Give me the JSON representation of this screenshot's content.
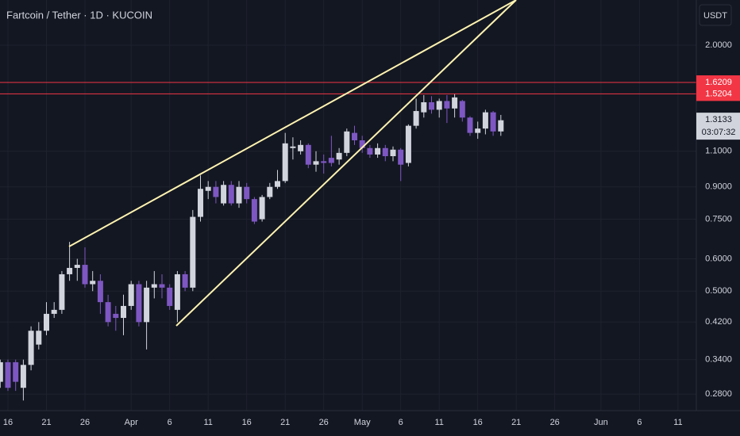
{
  "chart_data": {
    "type": "candlestick",
    "title": "Fartcoin / Tether · 1D · KUCOIN",
    "currency": "USDT",
    "categories": [
      null,
      "16",
      null,
      null,
      null,
      null,
      "21",
      null,
      null,
      null,
      null,
      "26",
      null,
      null,
      null,
      null,
      null,
      "Apr",
      null,
      null,
      null,
      null,
      "6",
      null,
      null,
      null,
      null,
      "11",
      null,
      null,
      null,
      null,
      "16",
      null,
      null,
      null,
      null,
      "21",
      null,
      null,
      null,
      null,
      "26",
      null,
      null,
      null,
      null,
      "May",
      null,
      null,
      null,
      null,
      "6",
      null,
      null,
      null,
      null,
      "11",
      null,
      null,
      null,
      null,
      "16",
      null,
      null,
      null,
      null,
      "21",
      null,
      null,
      null,
      null,
      "26",
      null,
      null,
      null,
      null,
      null,
      "Jun",
      null,
      null,
      null,
      null,
      "6",
      null,
      null,
      null,
      null,
      "11"
    ],
    "open": [
      0.3,
      0.335,
      0.335,
      0.29,
      0.33,
      0.37,
      0.4,
      0.44,
      0.45,
      0.55,
      0.57,
      0.58,
      0.52,
      0.53,
      0.47,
      0.44,
      0.43,
      0.46,
      0.52,
      0.42,
      0.51,
      0.52,
      0.51,
      0.45,
      0.55,
      0.51,
      0.76,
      0.88,
      0.9,
      0.82,
      0.91,
      0.82,
      0.9,
      0.84,
      0.75,
      0.85,
      0.9,
      0.93,
      1.12,
      1.1,
      1.14,
      1.02,
      1.04,
      1.06,
      1.05,
      1.09,
      1.22,
      1.17,
      1.12,
      1.08,
      1.12,
      1.07,
      1.11,
      1.03,
      1.27,
      1.37,
      1.45,
      1.39,
      1.46,
      1.4,
      1.46,
      1.33,
      1.22,
      1.25,
      1.37,
      1.23,
      null,
      null,
      null,
      null,
      null,
      null,
      null,
      null,
      null,
      null,
      null,
      null,
      null,
      null,
      null,
      null,
      null,
      null,
      null,
      null,
      null,
      null,
      null
    ],
    "high": [
      0.34,
      0.34,
      0.34,
      0.34,
      0.41,
      0.42,
      0.47,
      0.47,
      0.56,
      0.66,
      0.6,
      0.64,
      0.56,
      0.55,
      0.49,
      0.46,
      0.49,
      0.53,
      0.53,
      0.53,
      0.56,
      0.55,
      0.52,
      0.56,
      0.56,
      0.79,
      0.96,
      0.93,
      0.93,
      0.93,
      0.93,
      0.93,
      0.92,
      0.85,
      0.86,
      0.92,
      0.99,
      1.22,
      1.19,
      1.17,
      1.15,
      1.1,
      1.08,
      1.2,
      1.12,
      1.25,
      1.27,
      1.2,
      1.14,
      1.15,
      1.14,
      1.13,
      1.12,
      1.28,
      1.48,
      1.51,
      1.5,
      1.48,
      1.51,
      1.52,
      1.47,
      1.34,
      1.3,
      1.39,
      1.38,
      1.35,
      null,
      null,
      null,
      null,
      null,
      null,
      null,
      null,
      null,
      null,
      null,
      null,
      null,
      null,
      null,
      null,
      null,
      null,
      null,
      null,
      null,
      null,
      null
    ],
    "low": [
      0.29,
      0.285,
      0.285,
      0.27,
      0.32,
      0.36,
      0.39,
      0.43,
      0.44,
      0.53,
      0.53,
      0.51,
      0.5,
      0.44,
      0.41,
      0.4,
      0.39,
      0.45,
      0.41,
      0.36,
      0.48,
      0.48,
      0.45,
      0.42,
      0.5,
      0.5,
      0.74,
      0.84,
      0.82,
      0.81,
      0.81,
      0.8,
      0.82,
      0.73,
      0.74,
      0.84,
      0.89,
      0.92,
      1.05,
      1.08,
      1.0,
      0.98,
      0.97,
      1.01,
      1.02,
      1.07,
      1.14,
      1.09,
      1.06,
      1.06,
      1.04,
      1.04,
      0.93,
      1.01,
      1.25,
      1.33,
      1.36,
      1.33,
      1.29,
      1.33,
      1.3,
      1.2,
      1.18,
      1.21,
      1.2,
      1.2,
      null,
      null,
      null,
      null,
      null,
      null,
      null,
      null,
      null,
      null,
      null,
      null,
      null,
      null,
      null,
      null,
      null,
      null,
      null,
      null,
      null,
      null,
      null
    ],
    "close": [
      0.335,
      0.29,
      0.3,
      0.33,
      0.4,
      0.4,
      0.44,
      0.45,
      0.55,
      0.57,
      0.58,
      0.52,
      0.53,
      0.47,
      0.42,
      0.43,
      0.46,
      0.52,
      0.42,
      0.51,
      0.52,
      0.51,
      0.46,
      0.55,
      0.51,
      0.76,
      0.89,
      0.9,
      0.85,
      0.91,
      0.82,
      0.9,
      0.84,
      0.74,
      0.85,
      0.9,
      0.93,
      1.15,
      1.13,
      1.14,
      1.02,
      1.04,
      1.03,
      1.03,
      1.09,
      1.23,
      1.17,
      1.12,
      1.08,
      1.12,
      1.07,
      1.11,
      1.02,
      1.27,
      1.38,
      1.45,
      1.39,
      1.46,
      1.4,
      1.49,
      1.33,
      1.22,
      1.25,
      1.37,
      1.23,
      1.31,
      null,
      null,
      null,
      null,
      null,
      null,
      null,
      null,
      null,
      null,
      null,
      null,
      null,
      null,
      null,
      null,
      null,
      null,
      null,
      null,
      null,
      null,
      null
    ],
    "up_color": "#d1d4dc",
    "down_color": "#7e57c2",
    "log": true,
    "grid": true,
    "ylim": [
      0.255,
      2.58
    ],
    "yticks": [
      {
        "value": 0.28,
        "label": "0.2800"
      },
      {
        "value": 0.34,
        "label": "0.3400"
      },
      {
        "value": 0.42,
        "label": "0.4200"
      },
      {
        "value": 0.5,
        "label": "0.5000"
      },
      {
        "value": 0.6,
        "label": "0.6000"
      },
      {
        "value": 0.75,
        "label": "0.7500"
      },
      {
        "value": 0.9,
        "label": "0.9000"
      },
      {
        "value": 1.1,
        "label": "1.1000"
      },
      {
        "value": 2,
        "label": "2.0000"
      }
    ],
    "price_lines": [
      {
        "value": 1.6209,
        "color": "#f23645"
      },
      {
        "value": 1.5204,
        "color": "#f23645"
      }
    ],
    "last_price": 1.3133,
    "countdown": "03:07:32"
  }
}
